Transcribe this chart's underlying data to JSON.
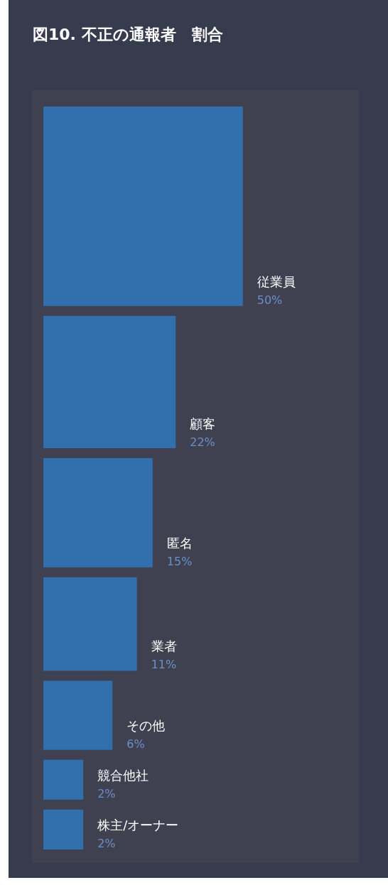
{
  "chart_data": {
    "type": "other",
    "title": "図10. 不正の通報者　割合",
    "categories": [
      "従業員",
      "顧客",
      "匿名",
      "業者",
      "その他",
      "競合他社",
      "株主/オーナー"
    ],
    "values": [
      50,
      22,
      15,
      11,
      6,
      2,
      2
    ],
    "value_labels": [
      "50%",
      "22%",
      "15%",
      "11%",
      "6%",
      "2%",
      "2%"
    ],
    "color": "#3170ad"
  }
}
